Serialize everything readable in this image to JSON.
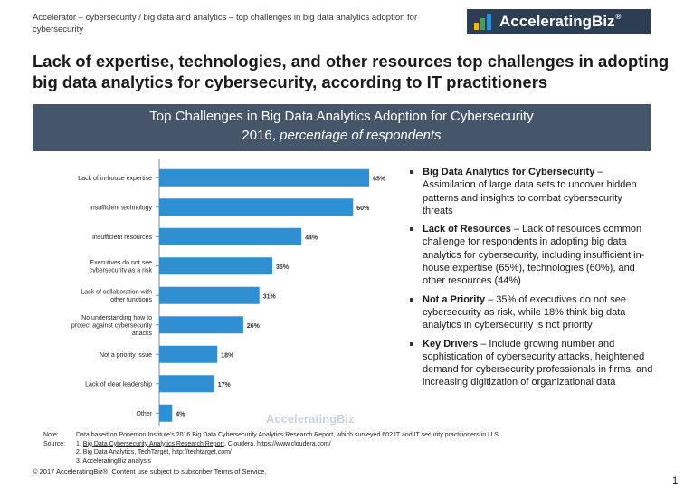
{
  "header": {
    "breadcrumb": "Accelerator – cybersecurity / big data and analytics – top challenges in big data analytics adoption for cybersecurity",
    "logo_text": "AcceleratingBiz",
    "logo_reg": "®",
    "logo_colors": [
      "#f2b705",
      "#3fa34d",
      "#2f8fd1"
    ]
  },
  "headline": "Lack of expertise, technologies, and other resources top challenges in adopting big data analytics for cybersecurity, according to IT practitioners",
  "banner": {
    "title": "Top Challenges in Big Data Analytics Adoption for Cybersecurity",
    "subtitle_year": "2016, ",
    "subtitle_italic": "percentage of respondents"
  },
  "chart_data": {
    "type": "bar",
    "orientation": "horizontal",
    "categories": [
      "Lack of in-house expertise",
      "Insufficient technology",
      "Insufficient resources",
      "Executives do not see cybersecurity as a risk",
      "Lack of collaboration with other functions",
      "No understanding how to protect against cybersecurity attacks",
      "Not a priority issue",
      "Lack of clear leadership",
      "Other"
    ],
    "labels": [
      [
        "Lack of in-house expertise"
      ],
      [
        "Insufficient technology"
      ],
      [
        "Insufficient resources"
      ],
      [
        "Executives do not see",
        "cybersecurity as a risk"
      ],
      [
        "Lack of collaboration with",
        "other functions"
      ],
      [
        "No understanding how to",
        "protect against cybersecurity",
        "attacks"
      ],
      [
        "Not a priority issue"
      ],
      [
        "Lack of clear leadership"
      ],
      [
        "Other"
      ]
    ],
    "values": [
      65,
      60,
      44,
      35,
      31,
      26,
      18,
      17,
      4
    ],
    "value_labels": [
      "65%",
      "60%",
      "44%",
      "35%",
      "31%",
      "26%",
      "18%",
      "17%",
      "4%"
    ],
    "bar_color": "#2f8fd1",
    "watermark": "AcceleratingBiz",
    "xlim": [
      0,
      70
    ]
  },
  "bullets": [
    {
      "title": "Big Data Analytics for Cybersecurity",
      "text": " – Assimilation of large data sets to uncover hidden patterns and insights to combat cybersecurity threats"
    },
    {
      "title": "Lack of Resources",
      "text": " – Lack of resources common challenge for respondents in adopting big data analytics for cybersecurity, including insufficient in-house expertise (65%), technologies (60%), and other resources (44%)"
    },
    {
      "title": "Not a Priority",
      "text": " – 35% of executives do not see cybersecurity as risk, while 18% think big data analytics in cybersecurity is not priority"
    },
    {
      "title": "Key Drivers",
      "text": " – Include growing number and sophistication of cybersecurity attacks, heightened demand for cybersecurity professionals in firms, and increasing digitization of organizational data"
    }
  ],
  "notes": {
    "note_label": "Note:",
    "note_text": "Data based on Ponemon Institute's 2016 Big Data Cybersecurity Analytics Research Report, which surveyed 602 IT and IT security practitioners in U.S.",
    "source_label": "Source:",
    "source_1_pre": "1. ",
    "source_1_link": "Big Data Cybersecurity Analytics Research Report",
    "source_1_post": ", Cloudera, https://www.cloudera.com/",
    "source_2_pre": "2. ",
    "source_2_link": "Big Data Analytics",
    "source_2_post": ", TechTarget, http://techtarget.com/",
    "source_3": "3. AcceleratingBiz analysis"
  },
  "footer": {
    "copyright": "© 2017 AcceleratingBiz®. Content use subject to subscriber Terms of Service.",
    "page_number": "1"
  }
}
